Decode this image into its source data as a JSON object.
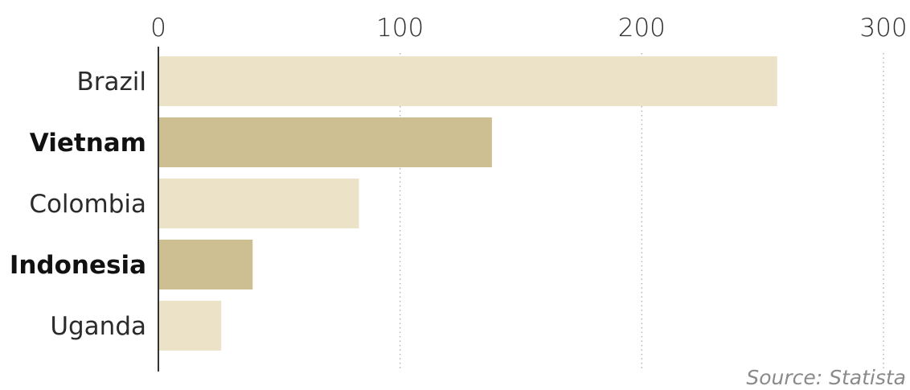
{
  "colors": {
    "bar_light": "#ebe2c8",
    "bar_dark": "#cdbf92",
    "axis": "#333333",
    "grid": "#b5b5b5"
  },
  "source": "Source: Statista",
  "chart_data": {
    "type": "bar",
    "orientation": "horizontal",
    "title": "",
    "xlabel": "",
    "ylabel": "",
    "categories": [
      "Brazil",
      "Vietnam",
      "Colombia",
      "Indonesia",
      "Uganda"
    ],
    "values": [
      256,
      138,
      83,
      39,
      26
    ],
    "highlighted": [
      "Vietnam",
      "Indonesia"
    ],
    "xlim": [
      0,
      300
    ],
    "xticks": [
      0,
      100,
      200,
      300
    ],
    "x_tick_labels": [
      "0",
      "100",
      "200",
      "300"
    ],
    "axis_position": "top",
    "grid": true,
    "grid_style": "dotted vertical"
  }
}
